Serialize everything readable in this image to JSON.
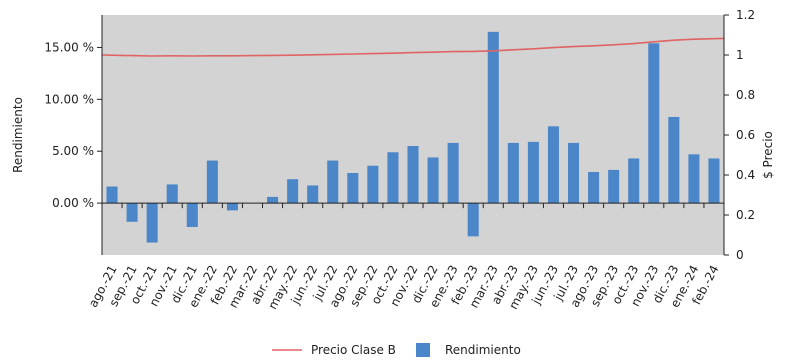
{
  "chart_data": {
    "type": "bar",
    "categories": [
      "ago.-21",
      "sep.-21",
      "oct.-21",
      "nov.-21",
      "dic.-21",
      "ene.-22",
      "feb.-22",
      "mar.-22",
      "abr.-22",
      "may.-22",
      "jun.-22",
      "jul.-22",
      "ago.-22",
      "sep.-22",
      "oct.-22",
      "nov.-22",
      "dic.-22",
      "ene.-23",
      "feb.-23",
      "mar.-23",
      "abr.-23",
      "may.-23",
      "jun.-23",
      "jul.-23",
      "ago.-23",
      "sep.-23",
      "oct.-23",
      "nov.-23",
      "dic.-23",
      "ene.-24",
      "feb.-24"
    ],
    "series": [
      {
        "name": "Rendimiento",
        "type": "bar",
        "axis": "left",
        "color": "#4a86c8",
        "values": [
          1.6,
          -1.8,
          -3.8,
          1.8,
          -2.3,
          4.1,
          -0.7,
          0.0,
          0.6,
          2.3,
          1.7,
          4.1,
          2.9,
          3.6,
          4.9,
          5.5,
          4.4,
          5.8,
          -3.2,
          16.5,
          5.8,
          5.9,
          7.4,
          5.8,
          3.0,
          3.2,
          4.3,
          15.4,
          8.3,
          4.7,
          4.3
        ]
      },
      {
        "name": "Precio Clase B",
        "type": "line",
        "axis": "right",
        "color": "#e06464",
        "values": [
          1.0,
          0.997,
          0.995,
          0.996,
          0.995,
          0.996,
          0.996,
          0.997,
          0.998,
          0.999,
          1.001,
          1.003,
          1.005,
          1.007,
          1.009,
          1.012,
          1.014,
          1.017,
          1.018,
          1.021,
          1.026,
          1.031,
          1.037,
          1.042,
          1.046,
          1.051,
          1.057,
          1.066,
          1.074,
          1.079,
          1.083
        ]
      }
    ],
    "y_left": {
      "label": "Rendimiento",
      "ylim": [
        -5.0,
        18.125
      ],
      "ticks": [
        "0.00 %",
        "5.00 %",
        "10.00 %",
        "15.00 %"
      ],
      "tick_values": [
        0,
        5,
        10,
        15
      ]
    },
    "y_right": {
      "label": "$ Precio",
      "ylim": [
        0,
        1.2
      ],
      "ticks": [
        "0",
        "0.2",
        "0.4",
        "0.6",
        "0.8",
        "1",
        "1.2"
      ],
      "tick_values": [
        0,
        0.2,
        0.4,
        0.6,
        0.8,
        1.0,
        1.2
      ]
    },
    "legend": {
      "position": "bottom",
      "entries": [
        "Precio Clase B",
        "Rendimiento"
      ]
    },
    "grid": false,
    "plot_background": "#d3d3d3"
  }
}
